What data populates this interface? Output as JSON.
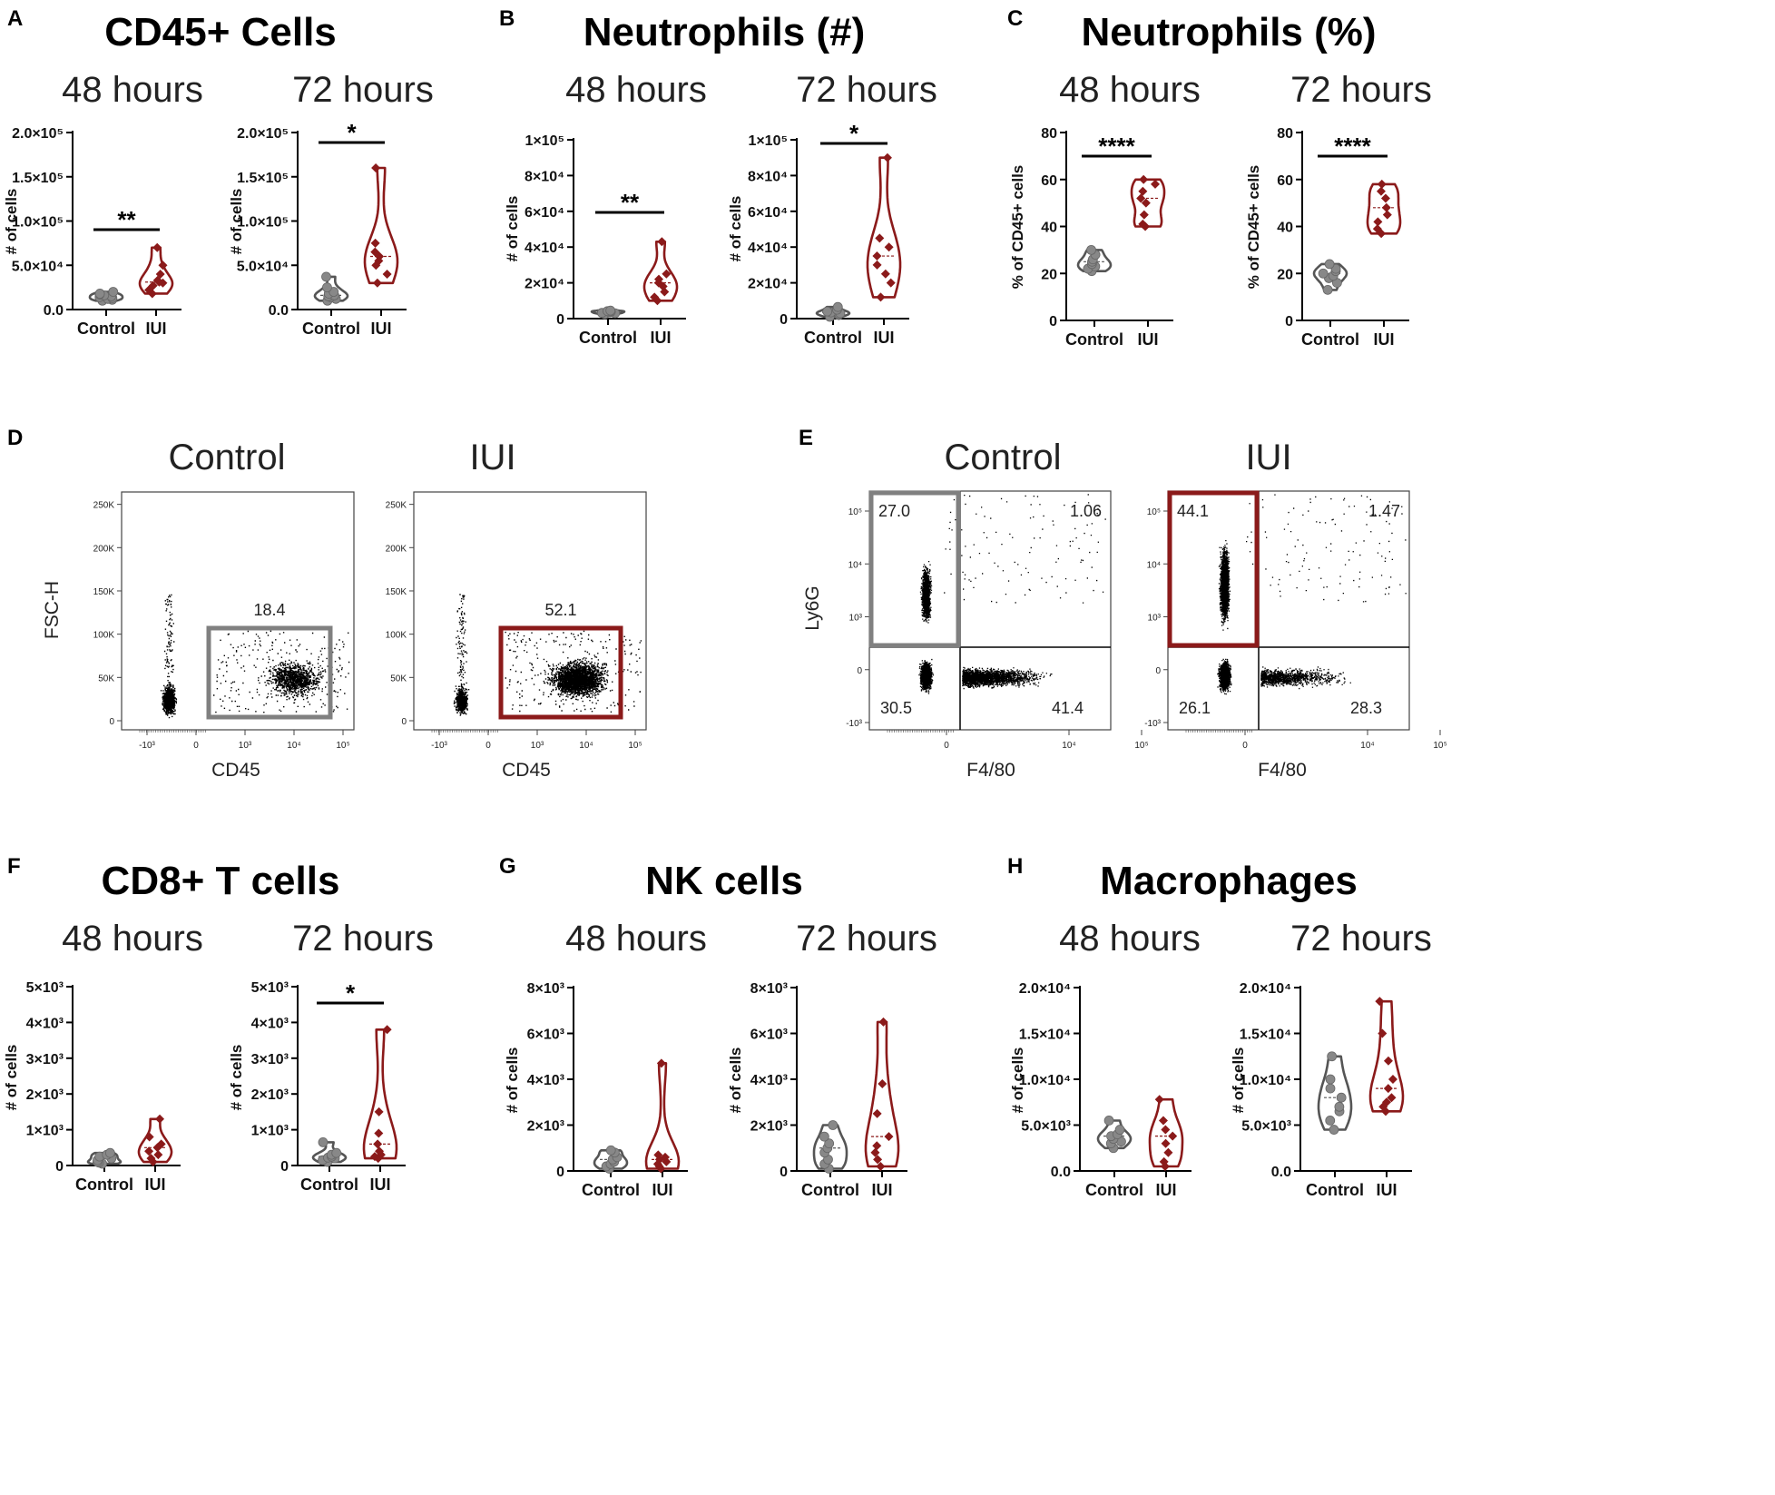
{
  "colors": {
    "control": "#555555",
    "control_fill": "#888888",
    "iui": "#8b1a1a",
    "axis": "#000000"
  },
  "chart_data": [
    {
      "id": "A",
      "type": "violin",
      "panel_label": "A",
      "title": "CD45+ Cells",
      "subcharts": [
        {
          "subtitle": "48 hours",
          "ylabel": "# of cells",
          "ylim": [
            0,
            200000
          ],
          "yticks": [
            {
              "v": 0,
              "t": "0.0"
            },
            {
              "v": 50000,
              "t": "5.0×10⁴"
            },
            {
              "v": 100000,
              "t": "1.0×10⁵"
            },
            {
              "v": 150000,
              "t": "1.5×10⁵"
            },
            {
              "v": 200000,
              "t": "2.0×10⁵"
            }
          ],
          "categories": [
            "Control",
            "IUI"
          ],
          "significance": "**",
          "series": [
            {
              "name": "Control",
              "values": [
                10000,
                11000,
                12000,
                13000,
                14000,
                15000,
                16000,
                17000,
                18000,
                20000
              ]
            },
            {
              "name": "IUI",
              "values": [
                18000,
                22000,
                27000,
                30000,
                31000,
                33000,
                40000,
                50000,
                70000
              ]
            }
          ]
        },
        {
          "subtitle": "72 hours",
          "ylabel": "# of cells",
          "ylim": [
            0,
            200000
          ],
          "yticks": [
            {
              "v": 0,
              "t": "0.0"
            },
            {
              "v": 50000,
              "t": "5.0×10⁴"
            },
            {
              "v": 100000,
              "t": "1.0×10⁵"
            },
            {
              "v": 150000,
              "t": "1.5×10⁵"
            },
            {
              "v": 200000,
              "t": "2.0×10⁵"
            }
          ],
          "categories": [
            "Control",
            "IUI"
          ],
          "significance": "*",
          "series": [
            {
              "name": "Control",
              "values": [
                10000,
                12000,
                14000,
                15000,
                16000,
                18000,
                20000,
                25000,
                37000
              ]
            },
            {
              "name": "IUI",
              "values": [
                30000,
                40000,
                50000,
                55000,
                60000,
                65000,
                75000,
                160000
              ]
            }
          ]
        }
      ]
    },
    {
      "id": "B",
      "type": "violin",
      "panel_label": "B",
      "title": "Neutrophils (#)",
      "subcharts": [
        {
          "subtitle": "48 hours",
          "ylabel": "# of cells",
          "ylim": [
            0,
            100000
          ],
          "yticks": [
            {
              "v": 0,
              "t": "0"
            },
            {
              "v": 20000,
              "t": "2×10⁴"
            },
            {
              "v": 40000,
              "t": "4×10⁴"
            },
            {
              "v": 60000,
              "t": "6×10⁴"
            },
            {
              "v": 80000,
              "t": "8×10⁴"
            },
            {
              "v": 100000,
              "t": "1×10⁵"
            }
          ],
          "categories": [
            "Control",
            "IUI"
          ],
          "significance": "**",
          "series": [
            {
              "name": "Control",
              "values": [
                2500,
                3000,
                3200,
                3500,
                3800,
                4000,
                4200,
                4500
              ]
            },
            {
              "name": "IUI",
              "values": [
                10000,
                12000,
                15000,
                18000,
                20000,
                22000,
                25000,
                43000
              ]
            }
          ]
        },
        {
          "subtitle": "72 hours",
          "ylabel": "# of cells",
          "ylim": [
            0,
            100000
          ],
          "yticks": [
            {
              "v": 0,
              "t": "0"
            },
            {
              "v": 20000,
              "t": "2×10⁴"
            },
            {
              "v": 40000,
              "t": "4×10⁴"
            },
            {
              "v": 60000,
              "t": "6×10⁴"
            },
            {
              "v": 80000,
              "t": "8×10⁴"
            },
            {
              "v": 100000,
              "t": "1×10⁵"
            }
          ],
          "categories": [
            "Control",
            "IUI"
          ],
          "significance": "*",
          "series": [
            {
              "name": "Control",
              "values": [
                1000,
                2000,
                2500,
                3000,
                3500,
                4000,
                5000,
                6500
              ]
            },
            {
              "name": "IUI",
              "values": [
                12000,
                20000,
                25000,
                30000,
                35000,
                40000,
                45000,
                90000
              ]
            }
          ]
        }
      ]
    },
    {
      "id": "C",
      "type": "violin",
      "panel_label": "C",
      "title": "Neutrophils (%)",
      "subcharts": [
        {
          "subtitle": "48 hours",
          "ylabel": "% of CD45+ cells",
          "ylim": [
            0,
            80
          ],
          "yticks": [
            {
              "v": 0,
              "t": "0"
            },
            {
              "v": 20,
              "t": "20"
            },
            {
              "v": 40,
              "t": "40"
            },
            {
              "v": 60,
              "t": "60"
            },
            {
              "v": 80,
              "t": "80"
            }
          ],
          "categories": [
            "Control",
            "IUI"
          ],
          "significance": "****",
          "series": [
            {
              "name": "Control",
              "values": [
                21,
                22,
                23,
                24,
                25,
                26,
                28,
                30
              ]
            },
            {
              "name": "IUI",
              "values": [
                40,
                41,
                45,
                50,
                52,
                55,
                58,
                60
              ]
            }
          ]
        },
        {
          "subtitle": "72 hours",
          "ylabel": "% of CD45+ cells",
          "ylim": [
            0,
            80
          ],
          "yticks": [
            {
              "v": 0,
              "t": "0"
            },
            {
              "v": 20,
              "t": "20"
            },
            {
              "v": 40,
              "t": "40"
            },
            {
              "v": 60,
              "t": "60"
            },
            {
              "v": 80,
              "t": "80"
            }
          ],
          "categories": [
            "Control",
            "IUI"
          ],
          "significance": "****",
          "series": [
            {
              "name": "Control",
              "values": [
                13,
                16,
                18,
                19,
                20,
                21,
                22,
                24
              ]
            },
            {
              "name": "IUI",
              "values": [
                37,
                39,
                42,
                45,
                48,
                52,
                55,
                58
              ]
            }
          ]
        }
      ]
    },
    {
      "id": "F",
      "type": "violin",
      "panel_label": "F",
      "title": "CD8+ T cells",
      "subcharts": [
        {
          "subtitle": "48 hours",
          "ylabel": "# of cells",
          "ylim": [
            0,
            5000
          ],
          "yticks": [
            {
              "v": 0,
              "t": "0"
            },
            {
              "v": 1000,
              "t": "1×10³"
            },
            {
              "v": 2000,
              "t": "2×10³"
            },
            {
              "v": 3000,
              "t": "3×10³"
            },
            {
              "v": 4000,
              "t": "4×10³"
            },
            {
              "v": 5000,
              "t": "5×10³"
            }
          ],
          "categories": [
            "Control",
            "IUI"
          ],
          "significance": "",
          "series": [
            {
              "name": "Control",
              "values": [
                50,
                80,
                100,
                150,
                200,
                250,
                300,
                350
              ]
            },
            {
              "name": "IUI",
              "values": [
                100,
                200,
                300,
                400,
                500,
                600,
                800,
                1300
              ]
            }
          ]
        },
        {
          "subtitle": "72 hours",
          "ylabel": "# of cells",
          "ylim": [
            0,
            5000
          ],
          "yticks": [
            {
              "v": 0,
              "t": "0"
            },
            {
              "v": 1000,
              "t": "1×10³"
            },
            {
              "v": 2000,
              "t": "2×10³"
            },
            {
              "v": 3000,
              "t": "3×10³"
            },
            {
              "v": 4000,
              "t": "4×10³"
            },
            {
              "v": 5000,
              "t": "5×10³"
            }
          ],
          "categories": [
            "Control",
            "IUI"
          ],
          "significance": "*",
          "series": [
            {
              "name": "Control",
              "values": [
                100,
                150,
                200,
                220,
                250,
                300,
                350,
                650
              ]
            },
            {
              "name": "IUI",
              "values": [
                200,
                250,
                300,
                400,
                600,
                900,
                1500,
                3800
              ]
            }
          ]
        }
      ]
    },
    {
      "id": "G",
      "type": "violin",
      "panel_label": "G",
      "title": "NK cells",
      "subcharts": [
        {
          "subtitle": "48 hours",
          "ylabel": "# of cells",
          "ylim": [
            0,
            8000
          ],
          "yticks": [
            {
              "v": 0,
              "t": "0"
            },
            {
              "v": 2000,
              "t": "2×10³"
            },
            {
              "v": 4000,
              "t": "4×10³"
            },
            {
              "v": 6000,
              "t": "6×10³"
            },
            {
              "v": 8000,
              "t": "8×10³"
            }
          ],
          "categories": [
            "Control",
            "IUI"
          ],
          "significance": "",
          "series": [
            {
              "name": "Control",
              "values": [
                100,
                200,
                300,
                400,
                500,
                600,
                800,
                900
              ]
            },
            {
              "name": "IUI",
              "values": [
                100,
                200,
                300,
                400,
                500,
                600,
                700,
                4700
              ]
            }
          ]
        },
        {
          "subtitle": "72 hours",
          "ylabel": "# of cells",
          "ylim": [
            0,
            8000
          ],
          "yticks": [
            {
              "v": 0,
              "t": "0"
            },
            {
              "v": 2000,
              "t": "2×10³"
            },
            {
              "v": 4000,
              "t": "4×10³"
            },
            {
              "v": 6000,
              "t": "6×10³"
            },
            {
              "v": 8000,
              "t": "8×10³"
            }
          ],
          "categories": [
            "Control",
            "IUI"
          ],
          "significance": "",
          "series": [
            {
              "name": "Control",
              "values": [
                100,
                300,
                500,
                800,
                1000,
                1200,
                1500,
                2000
              ]
            },
            {
              "name": "IUI",
              "values": [
                200,
                500,
                800,
                1100,
                1500,
                2500,
                3800,
                6500
              ]
            }
          ]
        }
      ]
    },
    {
      "id": "H",
      "type": "violin",
      "panel_label": "H",
      "title": "Macrophages",
      "subcharts": [
        {
          "subtitle": "48 hours",
          "ylabel": "# of cells",
          "ylim": [
            0,
            20000
          ],
          "yticks": [
            {
              "v": 0,
              "t": "0.0"
            },
            {
              "v": 5000,
              "t": "5.0×10³"
            },
            {
              "v": 10000,
              "t": "1.0×10⁴"
            },
            {
              "v": 15000,
              "t": "1.5×10⁴"
            },
            {
              "v": 20000,
              "t": "2.0×10⁴"
            }
          ],
          "categories": [
            "Control",
            "IUI"
          ],
          "significance": "",
          "series": [
            {
              "name": "Control",
              "values": [
                2500,
                3000,
                3200,
                3500,
                3800,
                4000,
                4500,
                5500
              ]
            },
            {
              "name": "IUI",
              "values": [
                500,
                1000,
                2000,
                3000,
                3800,
                4500,
                5500,
                7800
              ]
            }
          ]
        },
        {
          "subtitle": "72 hours",
          "ylabel": "# of cells",
          "ylim": [
            0,
            20000
          ],
          "yticks": [
            {
              "v": 0,
              "t": "0.0"
            },
            {
              "v": 5000,
              "t": "5.0×10³"
            },
            {
              "v": 10000,
              "t": "1.0×10⁴"
            },
            {
              "v": 15000,
              "t": "1.5×10⁴"
            },
            {
              "v": 20000,
              "t": "2.0×10⁴"
            }
          ],
          "categories": [
            "Control",
            "IUI"
          ],
          "significance": "",
          "series": [
            {
              "name": "Control",
              "values": [
                4500,
                5500,
                6500,
                7000,
                8000,
                9000,
                10000,
                12500
              ]
            },
            {
              "name": "IUI",
              "values": [
                6500,
                7000,
                7500,
                8000,
                9000,
                10000,
                12000,
                15000,
                18500
              ]
            }
          ]
        }
      ]
    }
  ],
  "flow_cytometry": [
    {
      "panel_label": "D",
      "xlabel": "CD45",
      "ylabel": "FSC-H",
      "xticks": [
        "-10³",
        "0",
        "10³",
        "10⁴",
        "10⁵"
      ],
      "yticks": [
        "0",
        "50K",
        "100K",
        "150K",
        "200K",
        "250K"
      ],
      "plots": [
        {
          "title": "Control",
          "gate_pct": "18.4",
          "gate_color": "#808080"
        },
        {
          "title": "IUI",
          "gate_pct": "52.1",
          "gate_color": "#8b1a1a"
        }
      ]
    },
    {
      "panel_label": "E",
      "xlabel": "F4/80",
      "ylabel": "Ly6G",
      "xticks": [
        "0",
        "10⁴",
        "10⁵"
      ],
      "yticks": [
        "-10³",
        "0",
        "10³",
        "10⁴",
        "10⁵"
      ],
      "plots": [
        {
          "title": "Control",
          "gate_color": "#808080",
          "quadrants": {
            "ul": "27.0",
            "ur": "1.06",
            "ll": "30.5",
            "lr": "41.4"
          }
        },
        {
          "title": "IUI",
          "gate_color": "#8b1a1a",
          "quadrants": {
            "ul": "44.1",
            "ur": "1.47",
            "ll": "26.1",
            "lr": "28.3"
          }
        }
      ]
    }
  ]
}
